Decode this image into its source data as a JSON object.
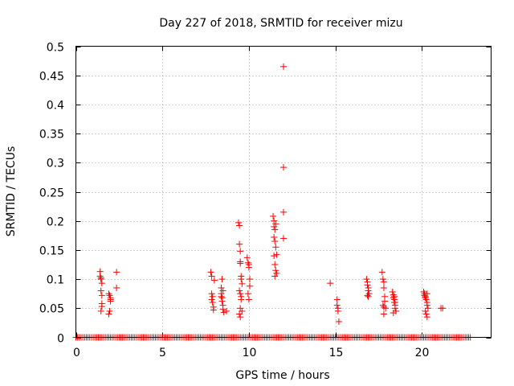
{
  "chart_data": {
    "type": "scatter",
    "title": "Day 227 of 2018, SRMTID for receiver mizu",
    "xlabel": "GPS time / hours",
    "ylabel": "SRMTID / TECUs",
    "xlim": [
      0,
      24
    ],
    "ylim": [
      0,
      0.5
    ],
    "xticks": [
      0,
      5,
      10,
      15,
      20
    ],
    "yticks": [
      0,
      0.05,
      0.1,
      0.15,
      0.2,
      0.25,
      0.3,
      0.35,
      0.4,
      0.45,
      0.5
    ],
    "grid": true,
    "marker": "+",
    "color": "#ff0000",
    "baseline_ranges": [
      [
        0.0,
        22.8
      ]
    ],
    "baseline_step": 0.1,
    "series": [
      {
        "name": "SRMTID",
        "x": [
          1.4,
          1.4,
          1.45,
          1.45,
          1.5,
          1.5,
          1.5,
          1.45,
          1.5,
          1.45,
          1.9,
          1.95,
          2.0,
          2.0,
          1.95,
          1.9,
          2.0,
          2.35,
          2.35,
          7.8,
          7.85,
          7.85,
          7.9,
          7.9,
          7.95,
          7.95,
          8.0,
          7.85,
          8.4,
          8.4,
          8.45,
          8.45,
          8.5,
          8.5,
          8.55,
          8.45,
          8.5,
          8.4,
          8.7,
          9.4,
          9.45,
          9.45,
          9.5,
          9.5,
          9.5,
          9.55,
          9.55,
          9.6,
          9.45,
          9.5,
          9.55,
          9.5,
          9.6,
          9.5,
          9.45,
          9.55,
          9.9,
          9.95,
          10.0,
          10.0,
          10.05,
          10.05,
          9.95,
          10.0,
          11.4,
          11.45,
          11.45,
          11.5,
          11.5,
          11.55,
          11.6,
          11.45,
          11.5,
          11.55,
          11.6,
          11.5,
          11.45,
          11.55,
          12.0,
          12.0,
          12.0,
          12.0,
          14.7,
          15.1,
          15.1,
          15.15,
          15.15,
          15.2,
          16.8,
          16.85,
          16.85,
          16.9,
          16.9,
          16.95,
          16.85,
          16.9,
          17.7,
          17.75,
          17.8,
          17.8,
          17.85,
          17.85,
          17.75,
          17.8,
          17.9,
          17.8,
          18.3,
          18.35,
          18.35,
          18.4,
          18.4,
          18.45,
          18.45,
          18.5,
          18.35,
          18.4,
          18.45,
          20.1,
          20.15,
          20.2,
          20.2,
          20.25,
          20.3,
          20.3,
          20.35,
          20.2,
          20.25,
          20.3,
          20.15,
          20.3,
          21.1,
          21.2
        ],
        "y": [
          0.113,
          0.105,
          0.1,
          0.08,
          0.072,
          0.058,
          0.053,
          0.045,
          0.093,
          0.102,
          0.075,
          0.072,
          0.065,
          0.062,
          0.045,
          0.04,
          0.068,
          0.112,
          0.085,
          0.112,
          0.105,
          0.075,
          0.07,
          0.06,
          0.052,
          0.047,
          0.098,
          0.065,
          0.085,
          0.075,
          0.068,
          0.062,
          0.055,
          0.048,
          0.043,
          0.1,
          0.08,
          0.07,
          0.045,
          0.197,
          0.192,
          0.16,
          0.148,
          0.13,
          0.127,
          0.105,
          0.1,
          0.092,
          0.08,
          0.075,
          0.07,
          0.05,
          0.045,
          0.035,
          0.04,
          0.065,
          0.137,
          0.128,
          0.125,
          0.12,
          0.1,
          0.088,
          0.075,
          0.065,
          0.208,
          0.2,
          0.19,
          0.185,
          0.165,
          0.155,
          0.142,
          0.14,
          0.125,
          0.115,
          0.11,
          0.105,
          0.172,
          0.195,
          0.465,
          0.292,
          0.215,
          0.17,
          0.093,
          0.065,
          0.055,
          0.05,
          0.045,
          0.027,
          0.1,
          0.095,
          0.09,
          0.085,
          0.08,
          0.075,
          0.072,
          0.07,
          0.112,
          0.1,
          0.095,
          0.085,
          0.07,
          0.062,
          0.055,
          0.052,
          0.05,
          0.04,
          0.078,
          0.073,
          0.068,
          0.065,
          0.06,
          0.055,
          0.05,
          0.045,
          0.042,
          0.07,
          0.06,
          0.078,
          0.075,
          0.07,
          0.068,
          0.065,
          0.06,
          0.055,
          0.05,
          0.045,
          0.04,
          0.035,
          0.072,
          0.075,
          0.05,
          0.05
        ]
      }
    ]
  }
}
